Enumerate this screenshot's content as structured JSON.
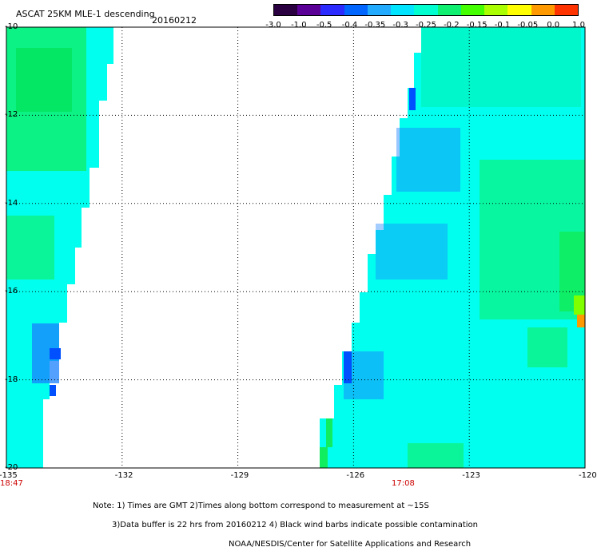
{
  "title": {
    "main": "ASCAT 25KM MLE-1 descending",
    "date": "20160212"
  },
  "colorbar": {
    "labels": [
      "-3.0",
      "-1.0",
      "-0.5",
      "-0.4",
      "-0.35",
      "-0.3",
      "-0.25",
      "-0.2",
      "-0.15",
      "-0.1",
      "-0.05",
      "0.0",
      "1.0"
    ],
    "colors": [
      "#2a0040",
      "#5b0096",
      "#2b2bff",
      "#0066ff",
      "#22aaff",
      "#00e5ff",
      "#00ffd0",
      "#10f070",
      "#44ff00",
      "#aaff00",
      "#ffff00",
      "#ff9900",
      "#ff3300"
    ]
  },
  "axes": {
    "lon_labels": [
      "-135",
      "-132",
      "-129",
      "-126",
      "-123",
      "-120"
    ],
    "lat_labels": [
      "-10",
      "-12",
      "-14",
      "-16",
      "-18",
      "-20"
    ],
    "lon_range": [
      -135,
      -120
    ],
    "lat_range": [
      -10,
      -20
    ]
  },
  "times": {
    "left": "18:47",
    "right": "17:08"
  },
  "notes": [
    "Note: 1) Times are GMT 2)Times along bottom correspond to measurement at ~15S",
    "3)Data buffer is 22 hrs from 20160212 4) Black wind barbs indicate possible contamination",
    "NOAA/NESDIS/Center for Satellite Applications and Research"
  ],
  "swath_colors": {
    "cyan": "#00ffee",
    "teal": "#00f0b0",
    "green": "#10ee60",
    "lightblue": "#00c8ff",
    "blue": "#1a80ff",
    "darkblue": "#0050ff",
    "yellowgreen": "#80ff00",
    "orange": "#ff9900"
  }
}
